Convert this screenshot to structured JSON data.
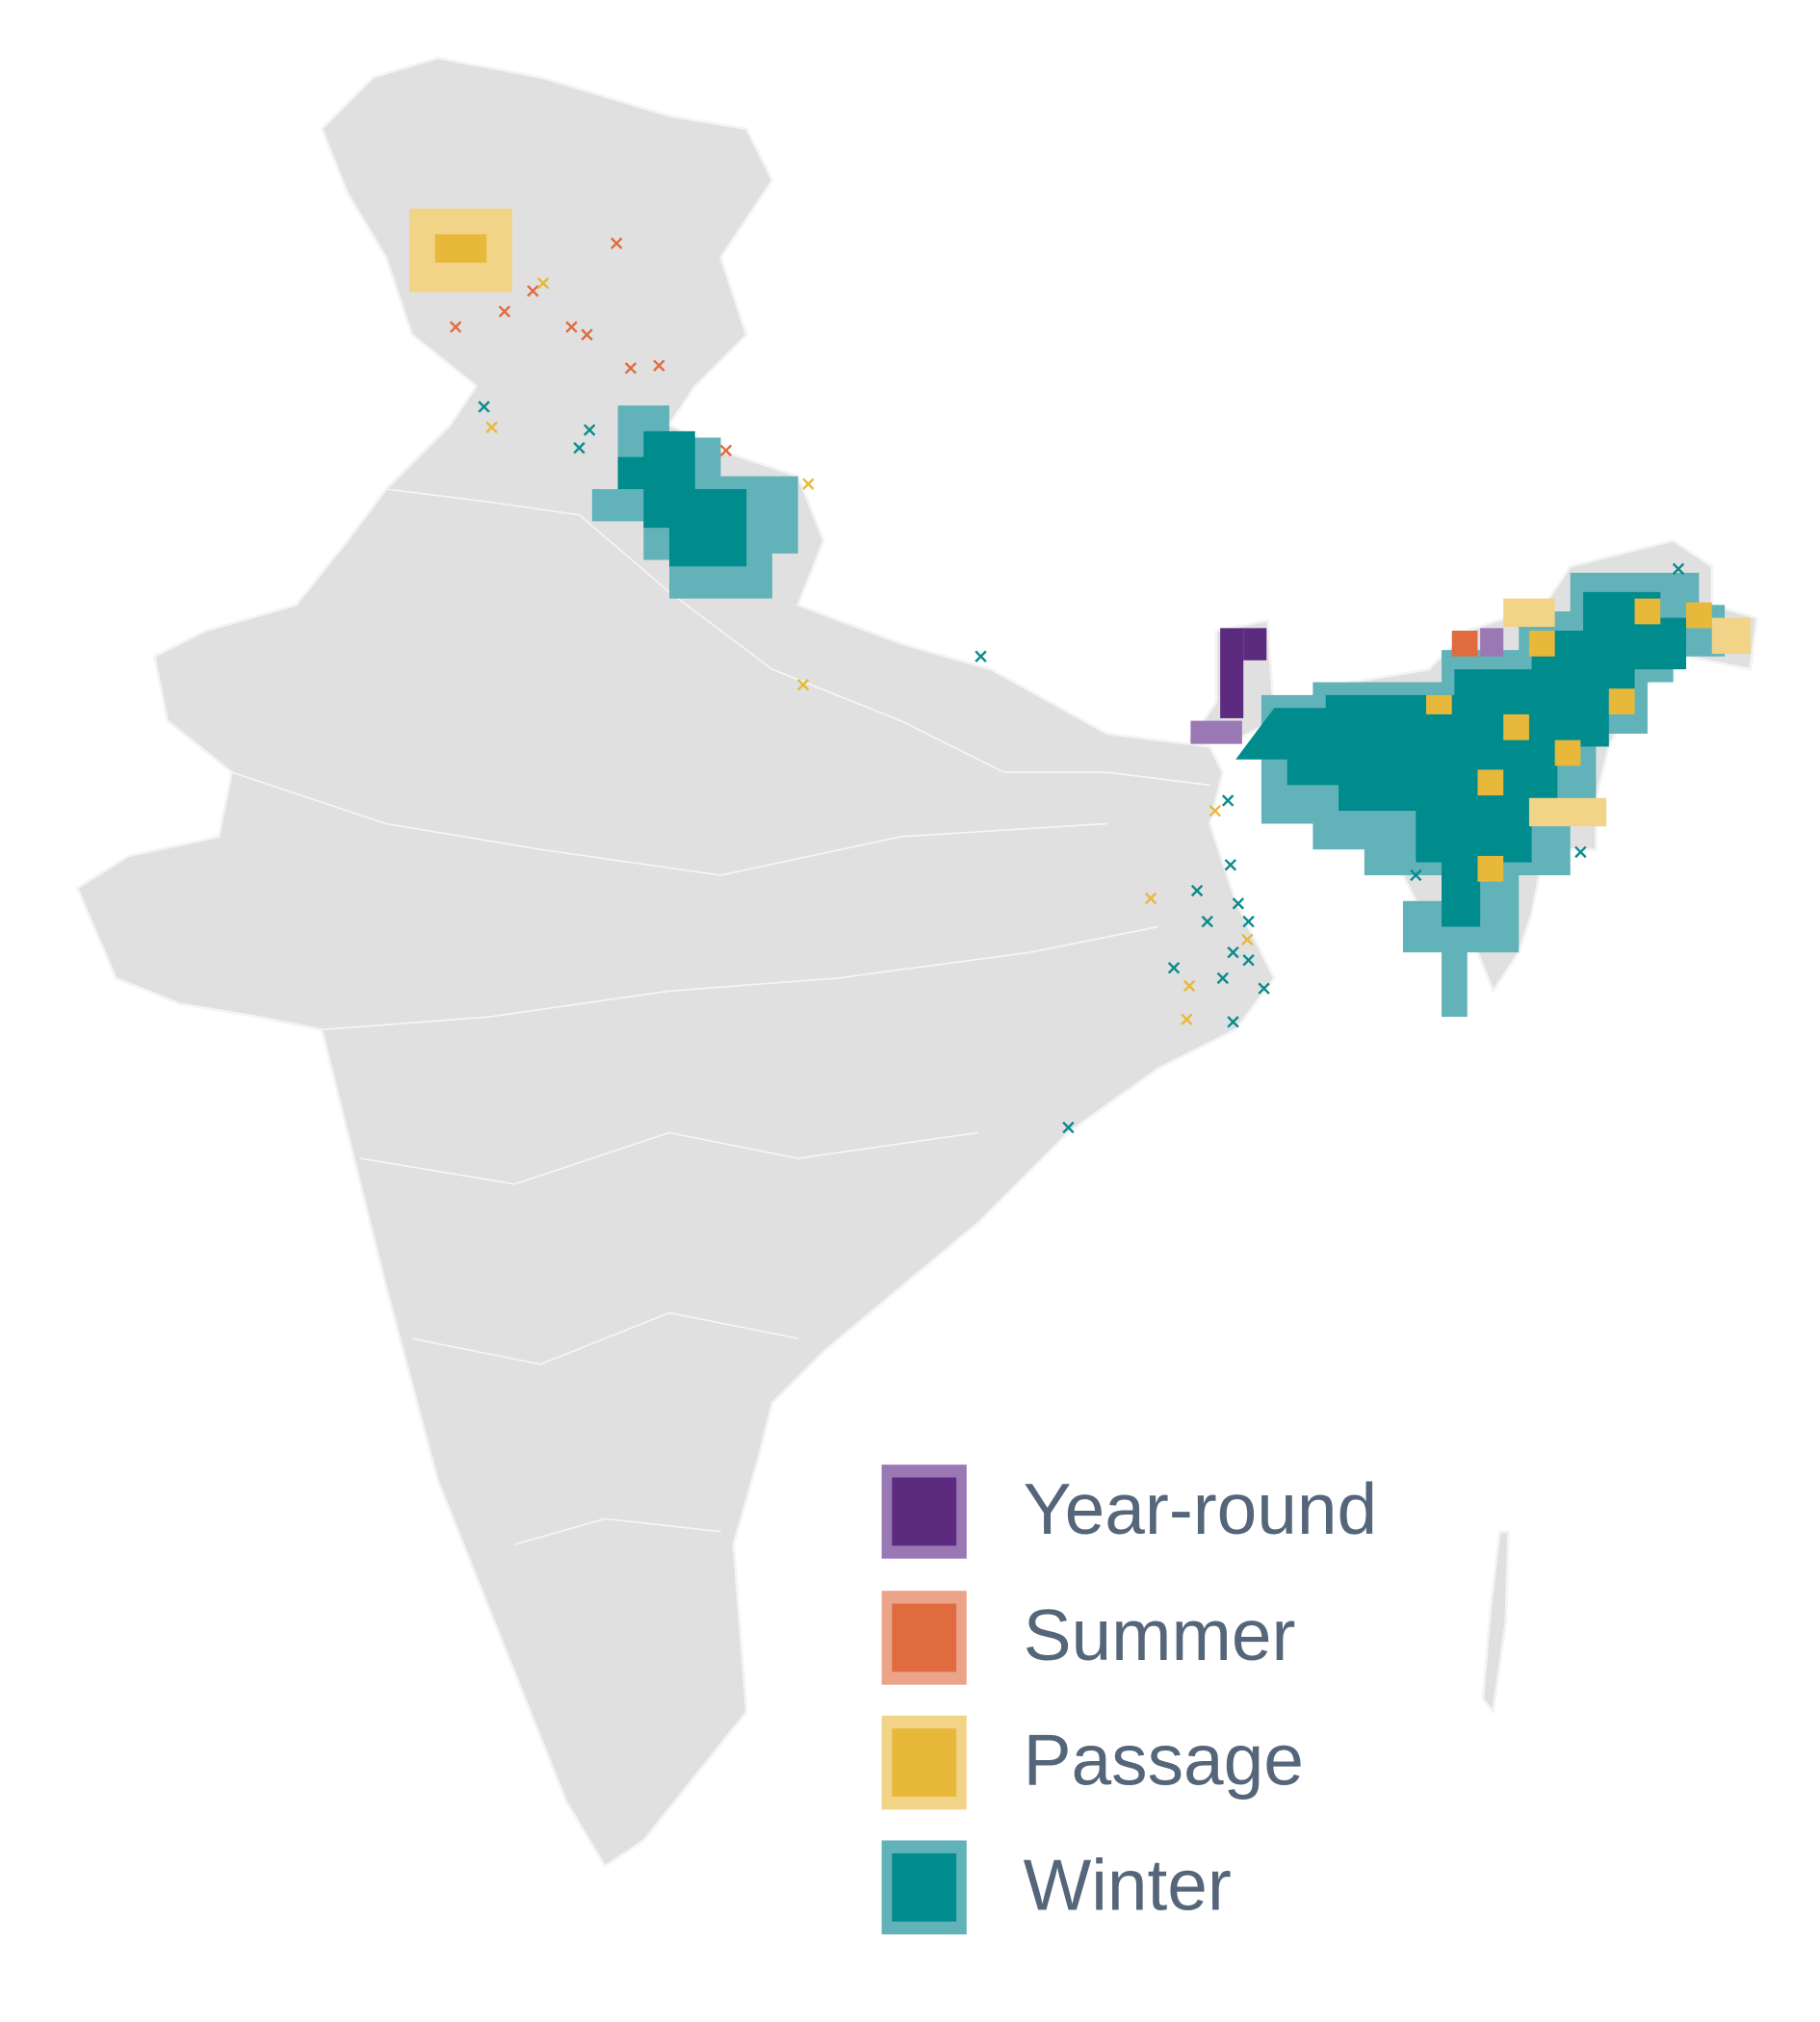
{
  "legend": {
    "items": [
      {
        "label": "Year-round"
      },
      {
        "label": "Summer"
      },
      {
        "label": "Passage"
      },
      {
        "label": "Winter"
      }
    ]
  }
}
